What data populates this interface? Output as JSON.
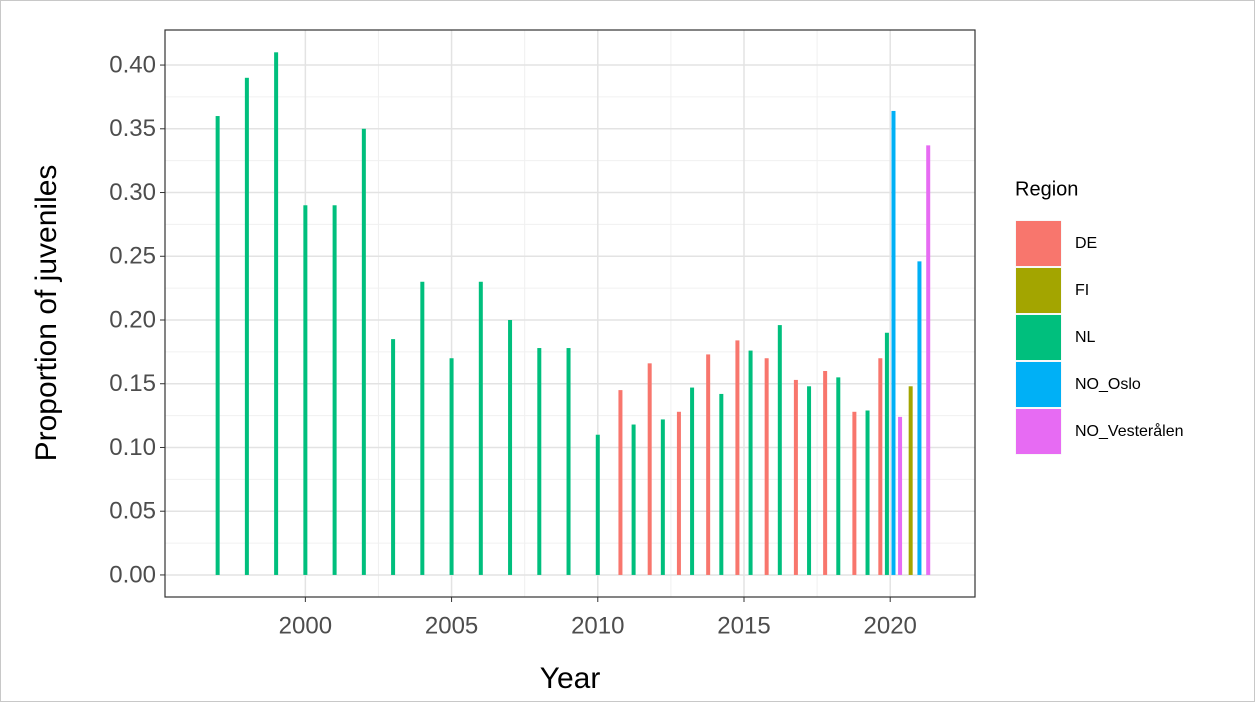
{
  "chart_data": {
    "type": "bar",
    "x_label": "Year",
    "y_label": "Proportion of juveniles",
    "legend_title": "Region",
    "legend": "right",
    "grid": true,
    "minor_grid": true,
    "x": [
      1997,
      1998,
      1999,
      2000,
      2001,
      2002,
      2003,
      2004,
      2005,
      2006,
      2007,
      2008,
      2009,
      2010,
      2011,
      2012,
      2013,
      2014,
      2015,
      2016,
      2017,
      2018,
      2019,
      2020,
      2021
    ],
    "series": [
      {
        "name": "DE",
        "color": "#F8766D",
        "values": [
          null,
          null,
          null,
          null,
          null,
          null,
          null,
          null,
          null,
          null,
          null,
          null,
          null,
          null,
          0.145,
          0.166,
          0.128,
          0.173,
          0.184,
          0.17,
          0.153,
          0.16,
          0.128,
          0.17,
          null
        ]
      },
      {
        "name": "FI",
        "color": "#A3A500",
        "values": [
          null,
          null,
          null,
          null,
          null,
          null,
          null,
          null,
          null,
          null,
          null,
          null,
          null,
          null,
          null,
          null,
          null,
          null,
          null,
          null,
          null,
          null,
          null,
          null,
          0.148
        ]
      },
      {
        "name": "NL",
        "color": "#00BF7D",
        "values": [
          0.36,
          0.39,
          0.41,
          0.29,
          0.29,
          0.35,
          0.185,
          0.23,
          0.17,
          0.23,
          0.2,
          0.178,
          0.178,
          0.11,
          0.118,
          0.122,
          0.147,
          0.142,
          0.176,
          0.196,
          0.148,
          0.155,
          0.129,
          0.19,
          null
        ]
      },
      {
        "name": "NO_Oslo",
        "color": "#00B0F6",
        "values": [
          null,
          null,
          null,
          null,
          null,
          null,
          null,
          null,
          null,
          null,
          null,
          null,
          null,
          null,
          null,
          null,
          null,
          null,
          null,
          null,
          null,
          null,
          null,
          0.364,
          0.246
        ]
      },
      {
        "name": "NO_Vesterålen",
        "color": "#E76BF3",
        "values": [
          null,
          null,
          null,
          null,
          null,
          null,
          null,
          null,
          null,
          null,
          null,
          null,
          null,
          null,
          null,
          null,
          null,
          null,
          null,
          null,
          null,
          null,
          null,
          0.124,
          0.337
        ]
      }
    ],
    "xlim": [
      1995.2,
      2022.9
    ],
    "xticks": [
      2000,
      2005,
      2010,
      2015,
      2020
    ],
    "ylim": [
      -0.0173,
      0.4275
    ],
    "yticks": [
      {
        "value": 0,
        "label": "0.00"
      },
      {
        "value": 0.05,
        "label": "0.05"
      },
      {
        "value": 0.1,
        "label": "0.10"
      },
      {
        "value": 0.15,
        "label": "0.15"
      },
      {
        "value": 0.2,
        "label": "0.20"
      },
      {
        "value": 0.25,
        "label": "0.25"
      },
      {
        "value": 0.3,
        "label": "0.30"
      },
      {
        "value": 0.35,
        "label": "0.35"
      },
      {
        "value": 0.4,
        "label": "0.40"
      }
    ]
  }
}
